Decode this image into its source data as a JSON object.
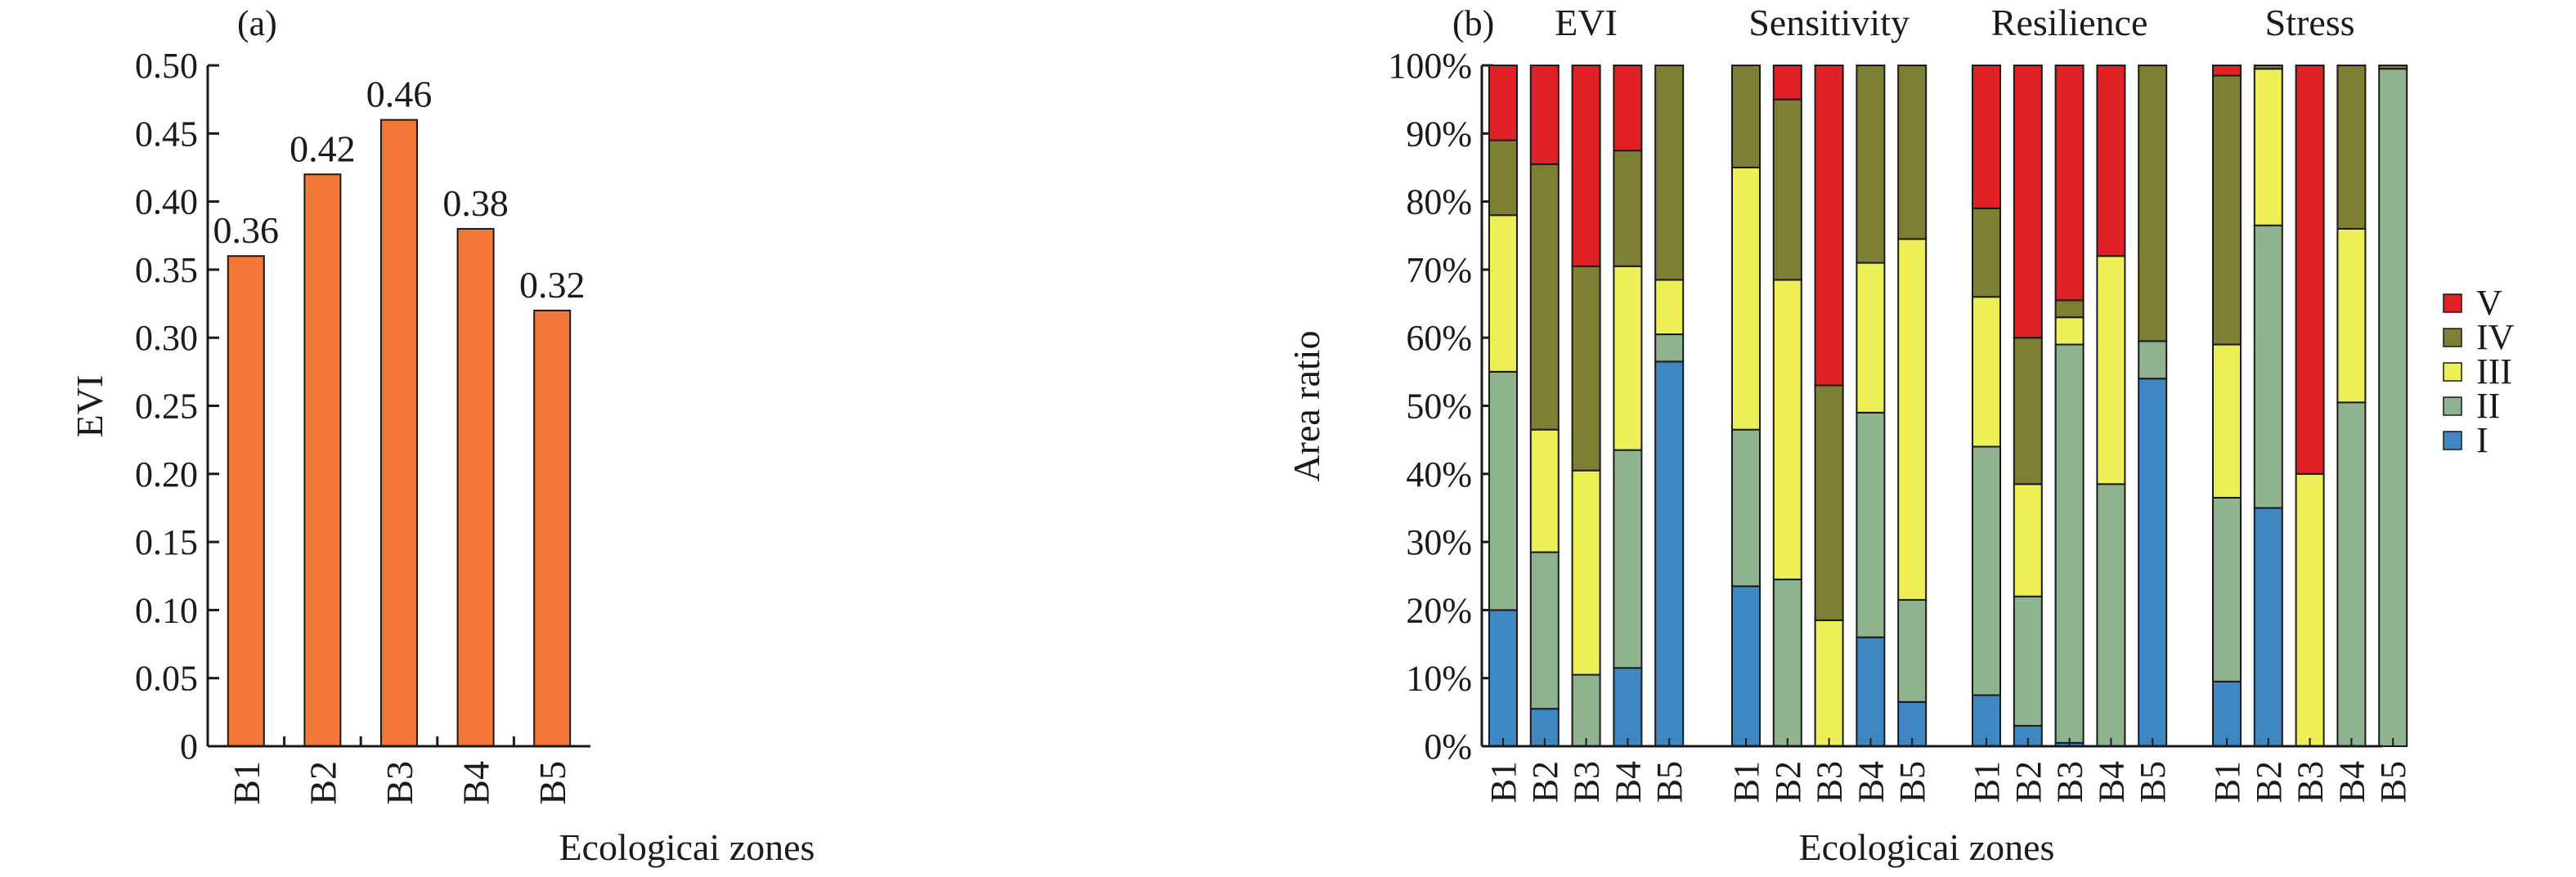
{
  "chart_data": [
    {
      "panel_label": "(a)",
      "type": "bar",
      "categories": [
        "B1",
        "B2",
        "B3",
        "B4",
        "B5"
      ],
      "values": [
        0.36,
        0.42,
        0.46,
        0.38,
        0.32
      ],
      "value_labels": [
        "0.36",
        "0.42",
        "0.46",
        "0.38",
        "0.32"
      ],
      "xlabel": "Ecologicai zones",
      "ylabel": "EVI",
      "ylim": [
        0,
        0.5
      ],
      "yticks": [
        "0",
        "0.05",
        "0.10",
        "0.15",
        "0.20",
        "0.25",
        "0.30",
        "0.35",
        "0.40",
        "0.45",
        "0.50"
      ],
      "bar_color": "#f37736",
      "grid": false
    },
    {
      "panel_label": "(b)",
      "type": "bar",
      "stacked": true,
      "xlabel": "Ecologicai zones",
      "ylabel": "Area ratio",
      "ylim": [
        0,
        100
      ],
      "yticks": [
        "0%",
        "10%",
        "20%",
        "30%",
        "40%",
        "50%",
        "60%",
        "70%",
        "80%",
        "90%",
        "100%"
      ],
      "legend_position": "right",
      "grid": false,
      "classes": [
        {
          "name": "I",
          "color": "#3f87c2"
        },
        {
          "name": "II",
          "color": "#8fb38e"
        },
        {
          "name": "III",
          "color": "#ecef55"
        },
        {
          "name": "IV",
          "color": "#7f7f33"
        },
        {
          "name": "V",
          "color": "#e02227"
        }
      ],
      "legend_order": [
        "V",
        "IV",
        "III",
        "II",
        "I"
      ],
      "groups": [
        {
          "name": "EVI",
          "categories": [
            "B1",
            "B2",
            "B3",
            "B4",
            "B5"
          ],
          "stacks": [
            [
              20,
              35,
              23,
              11,
              11
            ],
            [
              5.5,
              23,
              18,
              39,
              14.5
            ],
            [
              0,
              10.5,
              30,
              30,
              29.5
            ],
            [
              11.5,
              32,
              27,
              17,
              12.5
            ],
            [
              56.5,
              4,
              8,
              31.5,
              0
            ]
          ]
        },
        {
          "name": "Sensitivity",
          "categories": [
            "B1",
            "B2",
            "B3",
            "B4",
            "B5"
          ],
          "stacks": [
            [
              23.5,
              23,
              38.5,
              15,
              0
            ],
            [
              0,
              24.5,
              44,
              26.5,
              5
            ],
            [
              0,
              0,
              18.5,
              34.5,
              47
            ],
            [
              16,
              33,
              22,
              29,
              0
            ],
            [
              6.5,
              15,
              53,
              25.5,
              0
            ]
          ]
        },
        {
          "name": "Resilience",
          "categories": [
            "B1",
            "B2",
            "B3",
            "B4",
            "B5"
          ],
          "stacks": [
            [
              7.5,
              36.5,
              22,
              13,
              21
            ],
            [
              3,
              19,
              16.5,
              21.5,
              40
            ],
            [
              0.5,
              58.5,
              4,
              2.5,
              34.5
            ],
            [
              0,
              38.5,
              33.5,
              0,
              28
            ],
            [
              54,
              5.5,
              0,
              40.5,
              0
            ]
          ]
        },
        {
          "name": "Stress",
          "categories": [
            "B1",
            "B2",
            "B3",
            "B4",
            "B5"
          ],
          "stacks": [
            [
              9.5,
              27,
              22.5,
              39.5,
              1.5
            ],
            [
              35,
              41.5,
              23,
              0.5,
              0
            ],
            [
              0,
              0,
              40,
              0,
              60
            ],
            [
              0,
              50.5,
              25.5,
              24,
              0
            ],
            [
              0,
              99.5,
              0,
              0.5,
              0
            ]
          ]
        }
      ]
    }
  ]
}
